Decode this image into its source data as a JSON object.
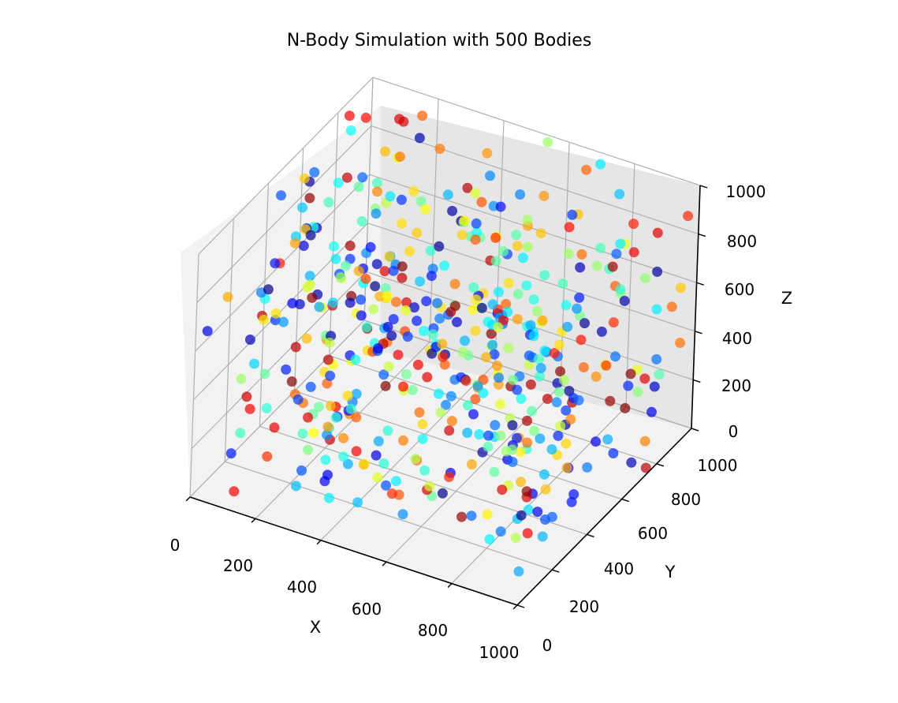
{
  "chart_data": {
    "type": "scatter",
    "projection": "3d",
    "title": "N-Body Simulation with 500 Bodies",
    "xlabel": "X",
    "ylabel": "Y",
    "zlabel": "Z",
    "xlim": [
      0,
      1000
    ],
    "ylim": [
      0,
      1000
    ],
    "zlim": [
      0,
      1000
    ],
    "x_ticks": [
      "0",
      "200",
      "400",
      "600",
      "800",
      "1000"
    ],
    "y_ticks": [
      "0",
      "200",
      "400",
      "600",
      "800",
      "1000"
    ],
    "z_ticks": [
      "0",
      "200",
      "400",
      "600",
      "800",
      "1000"
    ],
    "grid": true,
    "colormap": "jet",
    "marker_alpha": 0.7,
    "points_total": 500
  }
}
